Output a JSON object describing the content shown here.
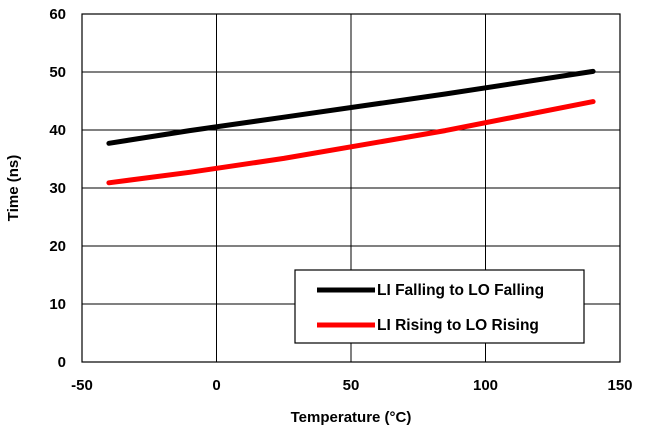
{
  "chart_data": {
    "type": "line",
    "title": "",
    "xlabel": "Temperature (°C)",
    "ylabel": "Time (ns)",
    "xlim": [
      -50,
      150
    ],
    "ylim": [
      0,
      60
    ],
    "xticks": [
      -50,
      0,
      50,
      100,
      150
    ],
    "yticks": [
      0,
      10,
      20,
      30,
      40,
      50,
      60
    ],
    "xtick_labels": [
      "-50",
      "0",
      "50",
      "100",
      "150"
    ],
    "ytick_labels": [
      "0",
      "10",
      "20",
      "30",
      "40",
      "50",
      "60"
    ],
    "grid": true,
    "legend_position": "bottom-right",
    "series": [
      {
        "name": "LI Falling to LO Falling",
        "color": "#000000",
        "x": [
          -40,
          -10,
          25,
          85,
          140
        ],
        "y": [
          37.7,
          39.9,
          42.2,
          46.2,
          50.1
        ]
      },
      {
        "name": "LI Rising to LO Rising",
        "color": "#ff0000",
        "x": [
          -40,
          -10,
          25,
          85,
          140
        ],
        "y": [
          30.9,
          32.7,
          35.1,
          39.9,
          44.9
        ]
      }
    ]
  }
}
